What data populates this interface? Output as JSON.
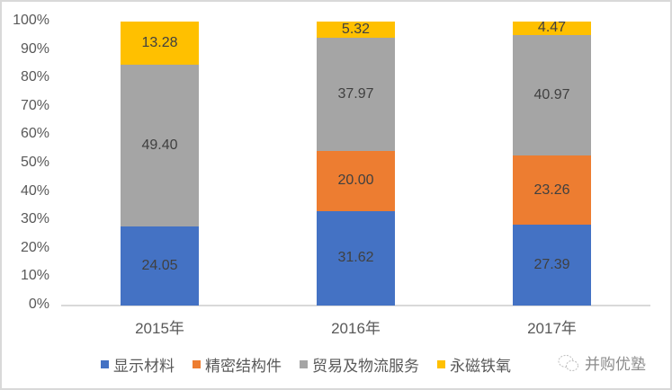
{
  "chart_data": {
    "type": "bar",
    "stacked": "percent",
    "title": "",
    "xlabel": "",
    "ylabel": "",
    "ylim": [
      0,
      100
    ],
    "y_ticks": [
      "0%",
      "10%",
      "20%",
      "30%",
      "40%",
      "50%",
      "60%",
      "70%",
      "80%",
      "90%",
      "100%"
    ],
    "categories": [
      "2015年",
      "2016年",
      "2017年"
    ],
    "series": [
      {
        "name": "显示材料",
        "color": "#4472C4",
        "values": [
          24.05,
          31.62,
          27.39
        ],
        "labels": [
          "24.05",
          "31.62",
          "27.39"
        ]
      },
      {
        "name": "精密结构件",
        "color": "#ED7D31",
        "values": [
          0,
          20.0,
          23.26
        ],
        "labels": [
          "",
          "20.00",
          "23.26"
        ]
      },
      {
        "name": "贸易及物流服务",
        "color": "#A5A5A5",
        "values": [
          49.4,
          37.97,
          40.97
        ],
        "labels": [
          "49.40",
          "37.97",
          "40.97"
        ]
      },
      {
        "name": "永磁铁氧体",
        "color": "#FFC000",
        "values": [
          13.28,
          5.32,
          4.47
        ],
        "labels": [
          "13.28",
          "5.32",
          "4.47"
        ]
      }
    ],
    "legend_position": "bottom",
    "grid": false
  },
  "legend": {
    "items": [
      {
        "label": "显示材料",
        "color": "#4472C4"
      },
      {
        "label": "精密结构件",
        "color": "#ED7D31"
      },
      {
        "label": "贸易及物流服务",
        "color": "#A5A5A5"
      },
      {
        "label": "永磁铁氧",
        "color": "#FFC000"
      }
    ]
  },
  "watermark": {
    "text": "并购优塾",
    "icon": "wechat-icon"
  }
}
